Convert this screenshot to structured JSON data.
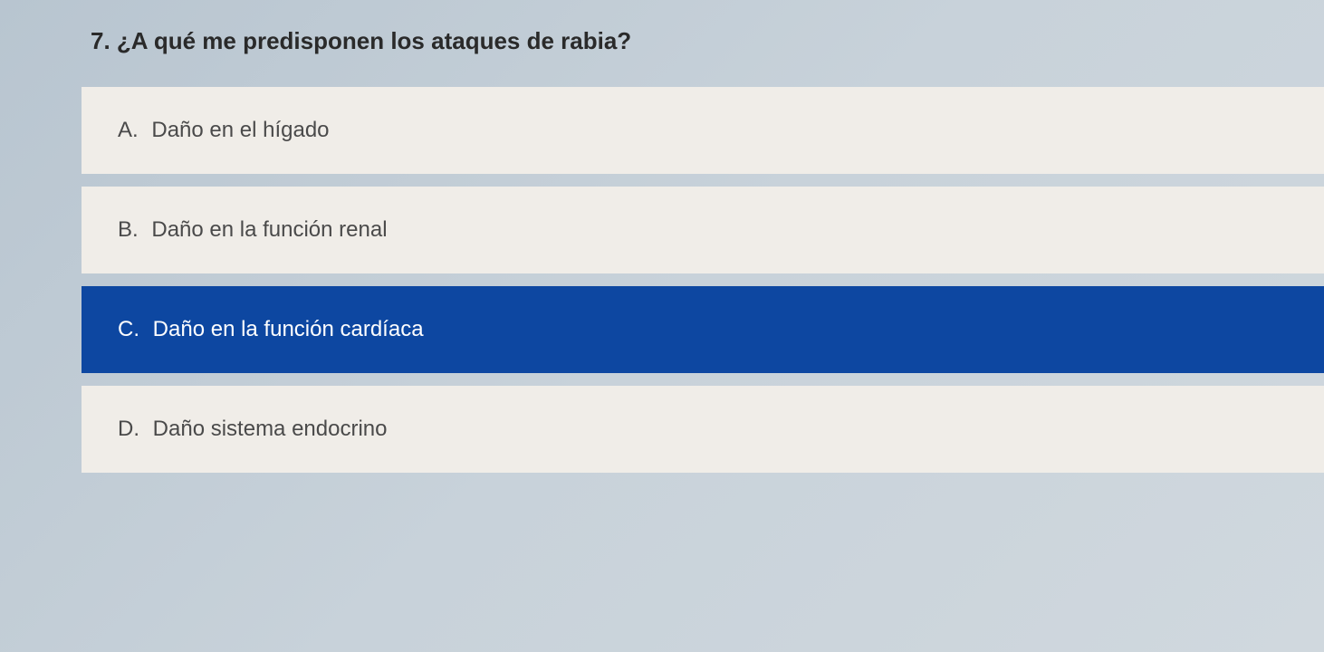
{
  "question": {
    "number": "7.",
    "text": "¿A qué me predisponen los ataques de rabia?"
  },
  "options": [
    {
      "letter": "A.",
      "text": "Daño en el hígado",
      "selected": false
    },
    {
      "letter": "B.",
      "text": "Daño en la función renal",
      "selected": false
    },
    {
      "letter": "C.",
      "text": "Daño en la función cardíaca",
      "selected": true
    },
    {
      "letter": "D.",
      "text": "Daño sistema endocrino",
      "selected": false
    }
  ],
  "colors": {
    "background_gradient_start": "#b8c5d0",
    "background_gradient_end": "#d0d8de",
    "option_background": "#f0ede8",
    "option_selected_background": "#0d47a1",
    "option_text": "#4a4a4a",
    "option_selected_text": "#ffffff",
    "question_text": "#2a2a2a"
  },
  "typography": {
    "question_fontsize": 26,
    "question_fontweight": "bold",
    "option_fontsize": 24
  }
}
